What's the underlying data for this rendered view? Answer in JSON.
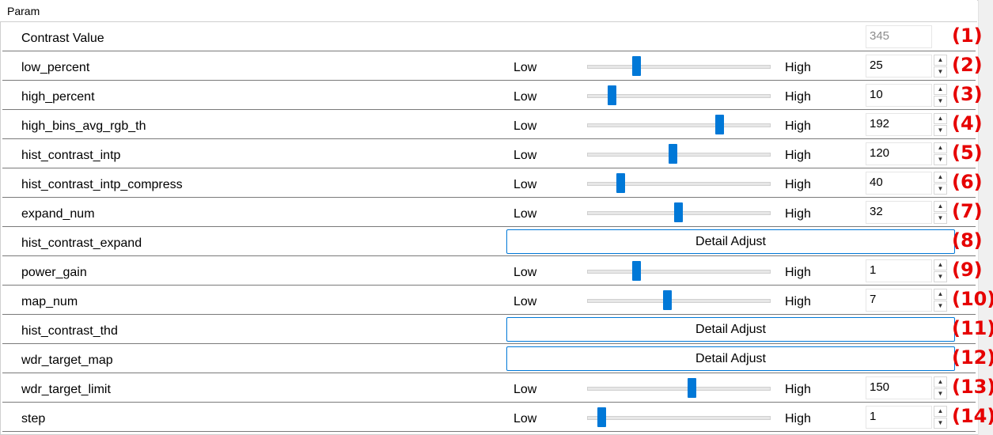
{
  "group": {
    "title": "Param"
  },
  "rows": [
    {
      "type": "value",
      "label": "Contrast Value",
      "value": "345",
      "index": "(1)"
    },
    {
      "type": "slider",
      "label": "low_percent",
      "low": "Low",
      "high": "High",
      "value": "25",
      "level": 0.26,
      "index": "(2)"
    },
    {
      "type": "slider",
      "label": "high_percent",
      "low": "Low",
      "high": "High",
      "value": "10",
      "level": 0.12,
      "index": "(3)"
    },
    {
      "type": "slider",
      "label": "high_bins_avg_rgb_th",
      "low": "Low",
      "high": "High",
      "value": "192",
      "level": 0.74,
      "index": "(4)"
    },
    {
      "type": "slider",
      "label": "hist_contrast_intp",
      "low": "Low",
      "high": "High",
      "value": "120",
      "level": 0.47,
      "index": "(5)"
    },
    {
      "type": "slider",
      "label": "hist_contrast_intp_compress",
      "low": "Low",
      "high": "High",
      "value": "40",
      "level": 0.17,
      "index": "(6)"
    },
    {
      "type": "slider",
      "label": "expand_num",
      "low": "Low",
      "high": "High",
      "value": "32",
      "level": 0.5,
      "index": "(7)"
    },
    {
      "type": "button",
      "label": "hist_contrast_expand",
      "button": "Detail Adjust",
      "index": "(8)"
    },
    {
      "type": "slider",
      "label": "power_gain",
      "low": "Low",
      "high": "High",
      "value": "1",
      "level": 0.26,
      "index": "(9)"
    },
    {
      "type": "slider",
      "label": "map_num",
      "low": "Low",
      "high": "High",
      "value": "7",
      "level": 0.44,
      "index": "(10)"
    },
    {
      "type": "button",
      "label": "hist_contrast_thd",
      "button": "Detail Adjust",
      "index": "(11)"
    },
    {
      "type": "button",
      "label": "wdr_target_map",
      "button": "Detail Adjust",
      "index": "(12)"
    },
    {
      "type": "slider",
      "label": "wdr_target_limit",
      "low": "Low",
      "high": "High",
      "value": "150",
      "level": 0.58,
      "index": "(13)"
    },
    {
      "type": "slider",
      "label": "step",
      "low": "Low",
      "high": "High",
      "value": "1",
      "level": 0.06,
      "index": "(14)"
    }
  ],
  "colors": {
    "accent": "#0078d7",
    "index_label": "#e60000"
  }
}
